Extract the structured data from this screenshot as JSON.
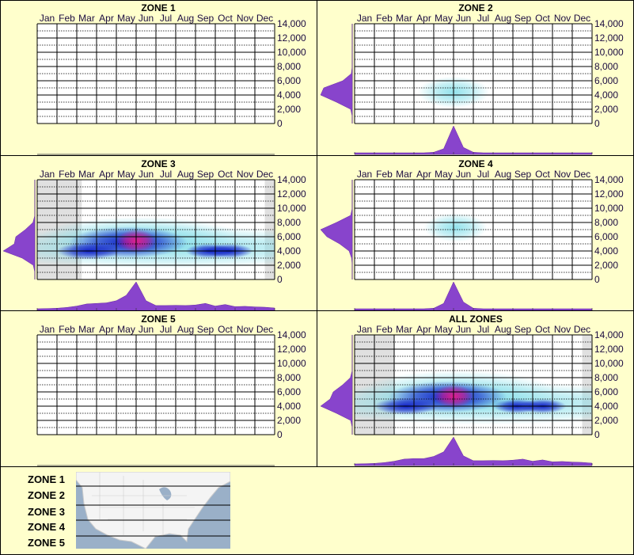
{
  "colors": {
    "background": "#ffffcc",
    "density": "#8844cc",
    "cyan": "#7fdde8",
    "blue": "#1020c8",
    "hot": "#e0208c",
    "no_data": "#e0e0e0"
  },
  "chart_data": [
    {
      "type": "heatmap",
      "title": "ZONE 1",
      "months": [
        "Jan",
        "Feb",
        "Mar",
        "Apr",
        "May",
        "Jun",
        "Jul",
        "Aug",
        "Sep",
        "Oct",
        "Nov",
        "Dec"
      ],
      "yticks": [
        "0",
        "2,000",
        "4,000",
        "6,000",
        "8,000",
        "10,000",
        "12,000",
        "14,000"
      ],
      "ylim": [
        0,
        14000
      ],
      "no_data_months": [],
      "blobs": [],
      "month_density": [],
      "altitude_density": []
    },
    {
      "type": "heatmap",
      "title": "ZONE 2",
      "months": [
        "Jan",
        "Feb",
        "Mar",
        "Apr",
        "May",
        "Jun",
        "Jul",
        "Aug",
        "Sep",
        "Oct",
        "Nov",
        "Dec"
      ],
      "yticks": [
        "0",
        "2,000",
        "4,000",
        "6,000",
        "8,000",
        "10,000",
        "12,000",
        "14,000"
      ],
      "ylim": [
        0,
        14000
      ],
      "no_data_months": [],
      "blobs": [
        {
          "month": 5.0,
          "altitude": 4400,
          "sm": 0.9,
          "sa": 1100,
          "level": 1
        }
      ],
      "month_density": [
        0,
        0,
        0,
        0,
        0,
        0,
        0,
        0,
        0.02,
        0.15,
        1.0,
        0.2,
        0.02,
        0,
        0,
        0,
        0,
        0,
        0,
        0,
        0,
        0,
        0,
        0,
        0
      ],
      "altitude_density": [
        0,
        0,
        0.05,
        0.5,
        1.0,
        0.9,
        0.3,
        0.03,
        0,
        0,
        0,
        0,
        0,
        0,
        0
      ]
    },
    {
      "type": "heatmap",
      "title": "ZONE 3",
      "months": [
        "Jan",
        "Feb",
        "Mar",
        "Apr",
        "May",
        "Jun",
        "Jul",
        "Aug",
        "Sep",
        "Oct",
        "Nov",
        "Dec"
      ],
      "yticks": [
        "0",
        "2,000",
        "4,000",
        "6,000",
        "8,000",
        "10,000",
        "12,000",
        "14,000"
      ],
      "ylim": [
        0,
        14000
      ],
      "no_data_months": [
        [
          0,
          2.25
        ],
        [
          11.5,
          12
        ]
      ],
      "blobs": [
        {
          "month": 6.5,
          "altitude": 4500,
          "sm": 5,
          "sa": 1500,
          "level": 1
        },
        {
          "month": 5.2,
          "altitude": 6200,
          "sm": 2.5,
          "sa": 1300,
          "level": 1
        },
        {
          "month": 2.6,
          "altitude": 4000,
          "sm": 0.8,
          "sa": 600,
          "level": 2
        },
        {
          "month": 4.6,
          "altitude": 5200,
          "sm": 1.5,
          "sa": 1100,
          "level": 2
        },
        {
          "month": 5.0,
          "altitude": 5400,
          "sm": 0.5,
          "sa": 800,
          "level": 3
        },
        {
          "month": 8.7,
          "altitude": 4000,
          "sm": 0.6,
          "sa": 500,
          "level": 2
        },
        {
          "month": 9.7,
          "altitude": 4000,
          "sm": 0.6,
          "sa": 500,
          "level": 2
        }
      ],
      "month_density": [
        0,
        0.01,
        0.02,
        0.05,
        0.1,
        0.18,
        0.2,
        0.22,
        0.3,
        0.5,
        1.0,
        0.3,
        0.12,
        0.12,
        0.13,
        0.12,
        0.14,
        0.2,
        0.1,
        0.16,
        0.08,
        0.09,
        0.07,
        0.06,
        0.03
      ],
      "altitude_density": [
        0,
        0,
        0.05,
        0.4,
        1.0,
        0.65,
        0.6,
        0.3,
        0.06,
        0,
        0,
        0,
        0,
        0,
        0
      ]
    },
    {
      "type": "heatmap",
      "title": "ZONE 4",
      "months": [
        "Jan",
        "Feb",
        "Mar",
        "Apr",
        "May",
        "Jun",
        "Jul",
        "Aug",
        "Sep",
        "Oct",
        "Nov",
        "Dec"
      ],
      "yticks": [
        "0",
        "2,000",
        "4,000",
        "6,000",
        "8,000",
        "10,000",
        "12,000",
        "14,000"
      ],
      "ylim": [
        0,
        14000
      ],
      "no_data_months": [],
      "blobs": [
        {
          "month": 5.1,
          "altitude": 7300,
          "sm": 0.8,
          "sa": 1000,
          "level": 1
        }
      ],
      "month_density": [
        0,
        0,
        0,
        0,
        0,
        0,
        0,
        0,
        0.02,
        0.2,
        1.0,
        0.25,
        0.02,
        0,
        0,
        0,
        0,
        0,
        0,
        0,
        0,
        0,
        0,
        0,
        0
      ],
      "altitude_density": [
        0,
        0,
        0,
        0.02,
        0.1,
        0.4,
        0.8,
        1.0,
        0.5,
        0.05,
        0,
        0,
        0,
        0,
        0
      ]
    },
    {
      "type": "heatmap",
      "title": "ZONE 5",
      "months": [
        "Jan",
        "Feb",
        "Mar",
        "Apr",
        "May",
        "Jun",
        "Jul",
        "Aug",
        "Sep",
        "Oct",
        "Nov",
        "Dec"
      ],
      "yticks": [
        "0",
        "2,000",
        "4,000",
        "6,000",
        "8,000",
        "10,000",
        "12,000",
        "14,000"
      ],
      "ylim": [
        0,
        14000
      ],
      "no_data_months": [],
      "blobs": [],
      "month_density": [],
      "altitude_density": []
    },
    {
      "type": "heatmap",
      "title": "ALL ZONES",
      "months": [
        "Jan",
        "Feb",
        "Mar",
        "Apr",
        "May",
        "Jun",
        "Jul",
        "Aug",
        "Sep",
        "Oct",
        "Nov",
        "Dec"
      ],
      "yticks": [
        "0",
        "2,000",
        "4,000",
        "6,000",
        "8,000",
        "10,000",
        "12,000",
        "14,000"
      ],
      "ylim": [
        0,
        14000
      ],
      "no_data_months": [
        [
          0,
          2.0
        ],
        [
          11.5,
          12
        ]
      ],
      "blobs": [
        {
          "month": 6.5,
          "altitude": 4400,
          "sm": 5,
          "sa": 1500,
          "level": 1
        },
        {
          "month": 5.2,
          "altitude": 6000,
          "sm": 2.5,
          "sa": 1500,
          "level": 1
        },
        {
          "month": 2.6,
          "altitude": 4000,
          "sm": 0.8,
          "sa": 600,
          "level": 2
        },
        {
          "month": 4.7,
          "altitude": 5300,
          "sm": 1.5,
          "sa": 1100,
          "level": 2
        },
        {
          "month": 5.0,
          "altitude": 5400,
          "sm": 0.5,
          "sa": 800,
          "level": 3
        },
        {
          "month": 8.2,
          "altitude": 4000,
          "sm": 0.6,
          "sa": 500,
          "level": 2
        },
        {
          "month": 9.5,
          "altitude": 4000,
          "sm": 0.6,
          "sa": 500,
          "level": 2
        }
      ],
      "month_density": [
        0,
        0.01,
        0.02,
        0.05,
        0.1,
        0.18,
        0.2,
        0.2,
        0.28,
        0.45,
        1.0,
        0.3,
        0.12,
        0.12,
        0.13,
        0.12,
        0.14,
        0.18,
        0.1,
        0.15,
        0.08,
        0.09,
        0.07,
        0.06,
        0.03
      ],
      "altitude_density": [
        0,
        0,
        0.05,
        0.5,
        1.0,
        0.7,
        0.6,
        0.3,
        0.06,
        0,
        0,
        0,
        0,
        0,
        0
      ]
    }
  ],
  "legend": {
    "zones": [
      "ZONE 1",
      "ZONE 2",
      "ZONE 3",
      "ZONE 4",
      "ZONE 5"
    ]
  }
}
